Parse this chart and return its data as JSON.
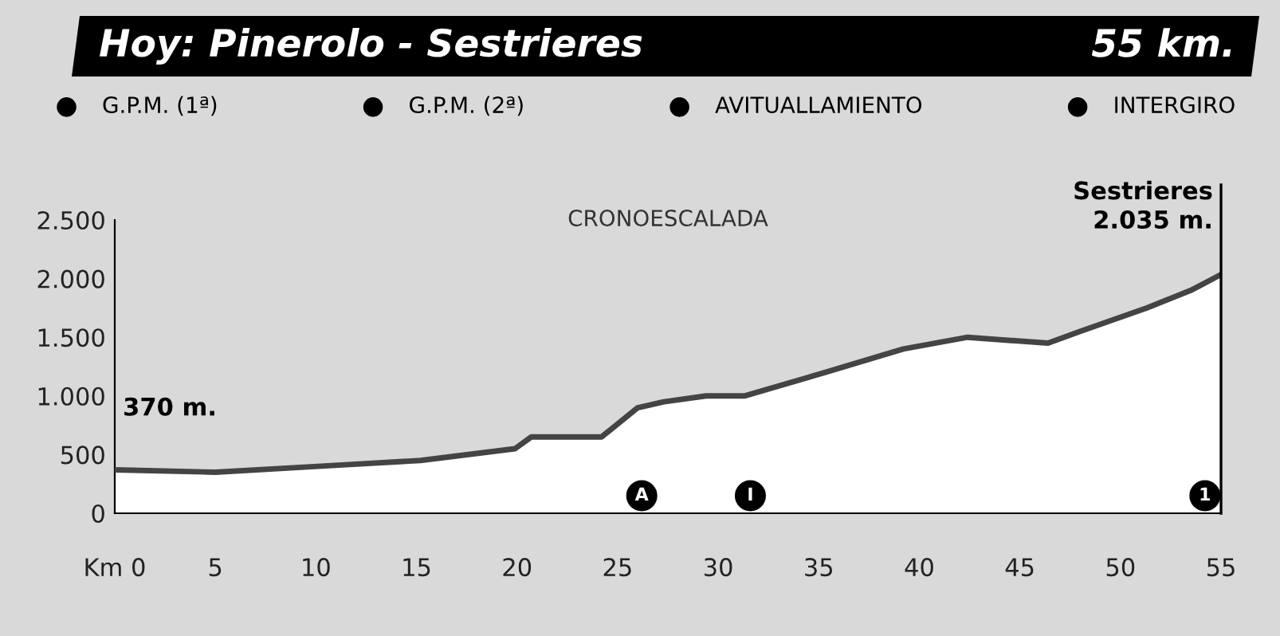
{
  "chart_data": {
    "type": "area",
    "title": "Hoy: Pinerolo - Sestrieres",
    "subtitle": "55 km.",
    "x": [
      0,
      5,
      10.1,
      15.2,
      19.9,
      20.7,
      24.2,
      26,
      27.3,
      29.4,
      31.3,
      35.3,
      39.2,
      42.4,
      46.4,
      48,
      51.3,
      53.5,
      55
    ],
    "series": [
      {
        "color": "#ffffff",
        "values": [
          370,
          350,
          400,
          450,
          550,
          650,
          650,
          900,
          950,
          1000,
          1000,
          1200,
          1400,
          1500,
          1450,
          1550,
          1750,
          1900,
          2035
        ]
      },
      {
        "type": "scatter",
        "marker": "circle",
        "name": "G.P.M. (1ª)",
        "color": "#000000",
        "x": [
          54.2
        ],
        "values": [
          150
        ]
      },
      {
        "type": "scatter",
        "marker": "circle",
        "name": "G.P.M. (2ª)",
        "color": "#000000",
        "values": [
          null,
          null,
          null,
          null,
          null,
          null,
          null,
          null,
          null,
          null,
          null,
          null,
          null,
          null,
          null,
          null,
          null,
          null,
          null
        ]
      },
      {
        "type": "scatter",
        "marker": "circle",
        "name": "AVITUALLAMIENTO",
        "color": "#000000",
        "x": [
          26.2
        ],
        "values": [
          150
        ]
      },
      {
        "type": "scatter",
        "marker": "circle",
        "name": "INTERGIRO",
        "color": "#000000",
        "x": [
          31.6
        ],
        "values": [
          150
        ]
      }
    ],
    "annotations": [
      {
        "text": "370 m.",
        "x": 0,
        "y": 370
      },
      {
        "text": "Sestrieres\n2.035 m.",
        "x": 55,
        "y": 2035
      },
      "CRONOESCALADA",
      {
        "text": "1",
        "x": 54.2,
        "y": 150
      },
      {
        "text": "A",
        "x": 26.2,
        "y": 150
      },
      {
        "text": "I",
        "x": 31.6,
        "y": 150
      }
    ],
    "ref_lines": [
      {
        "axis": "x",
        "value": 55,
        "color": "#000000"
      }
    ],
    "xlim": [
      0,
      55
    ],
    "xticks": [
      {
        "value": 0,
        "label": "Km 0"
      },
      5,
      10,
      15,
      20,
      25,
      30,
      35,
      40,
      45,
      50,
      55
    ],
    "ylim": [
      0,
      2500
    ],
    "yticks": [
      0,
      500,
      {
        "value": 1000,
        "label": "1.000"
      },
      {
        "value": 1500,
        "label": "1.500"
      },
      {
        "value": 2000,
        "label": "2.000"
      },
      {
        "value": 2500,
        "label": "2.500"
      }
    ],
    "legend": "top",
    "grid": false
  }
}
